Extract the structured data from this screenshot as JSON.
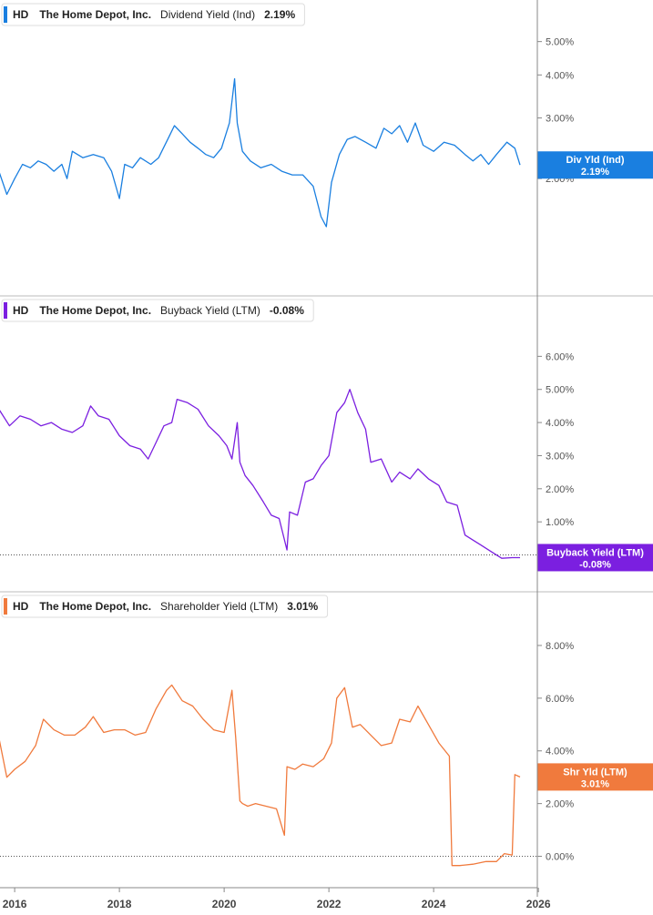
{
  "chart_data": [
    {
      "type": "line",
      "ticker": "HD",
      "company": "The Home Depot, Inc.",
      "metric": "Dividend Yield (Ind)",
      "current_value": "2.19%",
      "flag_label": "Div Yld (Ind)",
      "flag_value": "2.19%",
      "color": "#1a7fe0",
      "ylim": [
        1.0,
        5.5
      ],
      "y_scale": "log",
      "y_ticks": [
        2.0,
        3.0,
        4.0,
        5.0
      ],
      "y_tick_labels": [
        "2.00%",
        "3.00%",
        "4.00%",
        "5.00%"
      ],
      "zero_line": false,
      "series": [
        {
          "x": [
            2015.7,
            2015.85,
            2016.0,
            2016.15,
            2016.3,
            2016.45,
            2016.6,
            2016.75,
            2016.9,
            2017.0,
            2017.1,
            2017.3,
            2017.5,
            2017.7,
            2017.85,
            2018.0,
            2018.1,
            2018.25,
            2018.4,
            2018.6,
            2018.75,
            2018.95,
            2019.05,
            2019.2,
            2019.35,
            2019.5,
            2019.65,
            2019.8,
            2019.95,
            2020.1,
            2020.2,
            2020.25,
            2020.35,
            2020.5,
            2020.7,
            2020.9,
            2021.1,
            2021.3,
            2021.5,
            2021.7,
            2021.85,
            2021.95,
            2022.05,
            2022.2,
            2022.35,
            2022.5,
            2022.7,
            2022.9,
            2023.05,
            2023.2,
            2023.35,
            2023.5,
            2023.65,
            2023.8,
            2024.0,
            2024.2,
            2024.4,
            2024.6,
            2024.75,
            2024.9,
            2025.05,
            2025.2,
            2025.4,
            2025.55,
            2025.65
          ],
          "y": [
            2.1,
            1.8,
            2.0,
            2.2,
            2.15,
            2.25,
            2.2,
            2.1,
            2.2,
            2.0,
            2.4,
            2.3,
            2.35,
            2.3,
            2.1,
            1.75,
            2.2,
            2.15,
            2.3,
            2.2,
            2.3,
            2.65,
            2.85,
            2.7,
            2.55,
            2.45,
            2.35,
            2.3,
            2.45,
            2.9,
            3.9,
            2.9,
            2.4,
            2.25,
            2.15,
            2.2,
            2.1,
            2.05,
            2.05,
            1.9,
            1.55,
            1.45,
            1.95,
            2.35,
            2.6,
            2.65,
            2.55,
            2.45,
            2.8,
            2.7,
            2.85,
            2.55,
            2.9,
            2.5,
            2.4,
            2.55,
            2.5,
            2.35,
            2.25,
            2.35,
            2.2,
            2.35,
            2.55,
            2.45,
            2.19
          ]
        }
      ]
    },
    {
      "type": "line",
      "ticker": "HD",
      "company": "The Home Depot, Inc.",
      "metric": "Buyback Yield (LTM)",
      "current_value": "-0.08%",
      "flag_label": "Buyback Yield (LTM)",
      "flag_value": "-0.08%",
      "color": "#7b1fe0",
      "ylim": [
        -0.7,
        7.0
      ],
      "y_scale": "linear",
      "y_ticks": [
        1,
        2,
        3,
        4,
        5,
        6
      ],
      "y_tick_labels": [
        "1.00%",
        "2.00%",
        "3.00%",
        "4.00%",
        "5.00%",
        "6.00%"
      ],
      "zero_line": true,
      "series": [
        {
          "x": [
            2015.7,
            2015.9,
            2016.1,
            2016.3,
            2016.5,
            2016.7,
            2016.9,
            2017.1,
            2017.3,
            2017.45,
            2017.6,
            2017.8,
            2018.0,
            2018.2,
            2018.4,
            2018.55,
            2018.7,
            2018.85,
            2019.0,
            2019.1,
            2019.3,
            2019.5,
            2019.7,
            2019.9,
            2020.05,
            2020.15,
            2020.25,
            2020.3,
            2020.4,
            2020.55,
            2020.75,
            2020.9,
            2021.05,
            2021.2,
            2021.25,
            2021.4,
            2021.55,
            2021.7,
            2021.85,
            2022.0,
            2022.15,
            2022.3,
            2022.4,
            2022.55,
            2022.7,
            2022.8,
            2023.0,
            2023.2,
            2023.35,
            2023.55,
            2023.7,
            2023.9,
            2024.1,
            2024.25,
            2024.45,
            2024.6,
            2024.75,
            2024.9,
            2025.1,
            2025.3,
            2025.5,
            2025.65
          ],
          "y": [
            4.4,
            3.9,
            4.2,
            4.1,
            3.9,
            4.0,
            3.8,
            3.7,
            3.9,
            4.5,
            4.2,
            4.1,
            3.6,
            3.3,
            3.2,
            2.9,
            3.4,
            3.9,
            4.0,
            4.7,
            4.6,
            4.4,
            3.9,
            3.6,
            3.3,
            2.9,
            4.0,
            2.8,
            2.4,
            2.1,
            1.6,
            1.2,
            1.1,
            0.15,
            1.3,
            1.2,
            2.2,
            2.3,
            2.7,
            3.0,
            4.3,
            4.6,
            5.0,
            4.3,
            3.8,
            2.8,
            2.9,
            2.2,
            2.5,
            2.3,
            2.6,
            2.3,
            2.1,
            1.6,
            1.5,
            0.6,
            0.45,
            0.3,
            0.1,
            -0.1,
            -0.08,
            -0.08
          ]
        }
      ]
    },
    {
      "type": "line",
      "ticker": "HD",
      "company": "The Home Depot, Inc.",
      "metric": "Shareholder Yield (LTM)",
      "current_value": "3.01%",
      "flag_label": "Shr Yld (LTM)",
      "flag_value": "3.01%",
      "color": "#f07a3d",
      "ylim": [
        -0.5,
        9.0
      ],
      "y_scale": "linear",
      "y_ticks": [
        0,
        2,
        4,
        6,
        8
      ],
      "y_tick_labels": [
        "0.00%",
        "2.00%",
        "4.00%",
        "6.00%",
        "8.00%"
      ],
      "zero_line": true,
      "series": [
        {
          "x": [
            2015.7,
            2015.85,
            2016.0,
            2016.2,
            2016.4,
            2016.55,
            2016.75,
            2016.95,
            2017.15,
            2017.35,
            2017.5,
            2017.7,
            2017.9,
            2018.1,
            2018.3,
            2018.5,
            2018.7,
            2018.9,
            2019.0,
            2019.2,
            2019.4,
            2019.6,
            2019.8,
            2020.0,
            2020.15,
            2020.22,
            2020.3,
            2020.35,
            2020.45,
            2020.6,
            2020.8,
            2021.0,
            2021.15,
            2021.2,
            2021.35,
            2021.5,
            2021.7,
            2021.9,
            2022.05,
            2022.15,
            2022.3,
            2022.45,
            2022.6,
            2022.8,
            2023.0,
            2023.2,
            2023.35,
            2023.55,
            2023.7,
            2023.9,
            2024.1,
            2024.3,
            2024.35,
            2024.5,
            2024.75,
            2025.0,
            2025.2,
            2025.35,
            2025.5,
            2025.55,
            2025.65
          ],
          "y": [
            4.5,
            3.0,
            3.3,
            3.6,
            4.2,
            5.2,
            4.8,
            4.6,
            4.6,
            4.9,
            5.3,
            4.7,
            4.8,
            4.8,
            4.6,
            4.7,
            5.6,
            6.3,
            6.5,
            5.9,
            5.7,
            5.2,
            4.8,
            4.7,
            6.3,
            4.5,
            2.1,
            2.0,
            1.9,
            2.0,
            1.9,
            1.8,
            0.8,
            3.4,
            3.3,
            3.5,
            3.4,
            3.7,
            4.3,
            6.0,
            6.4,
            4.9,
            5.0,
            4.6,
            4.2,
            4.3,
            5.2,
            5.1,
            5.7,
            5.0,
            4.3,
            3.8,
            -0.35,
            -0.35,
            -0.3,
            -0.2,
            -0.2,
            0.1,
            0.05,
            3.1,
            3.01
          ]
        }
      ]
    }
  ],
  "x_axis": {
    "ticks": [
      2016,
      2018,
      2020,
      2022,
      2024,
      2026
    ],
    "tick_labels": [
      "2016",
      "2018",
      "2020",
      "2022",
      "2024",
      "2026"
    ],
    "xlim": [
      2015.72,
      2025.98
    ]
  }
}
